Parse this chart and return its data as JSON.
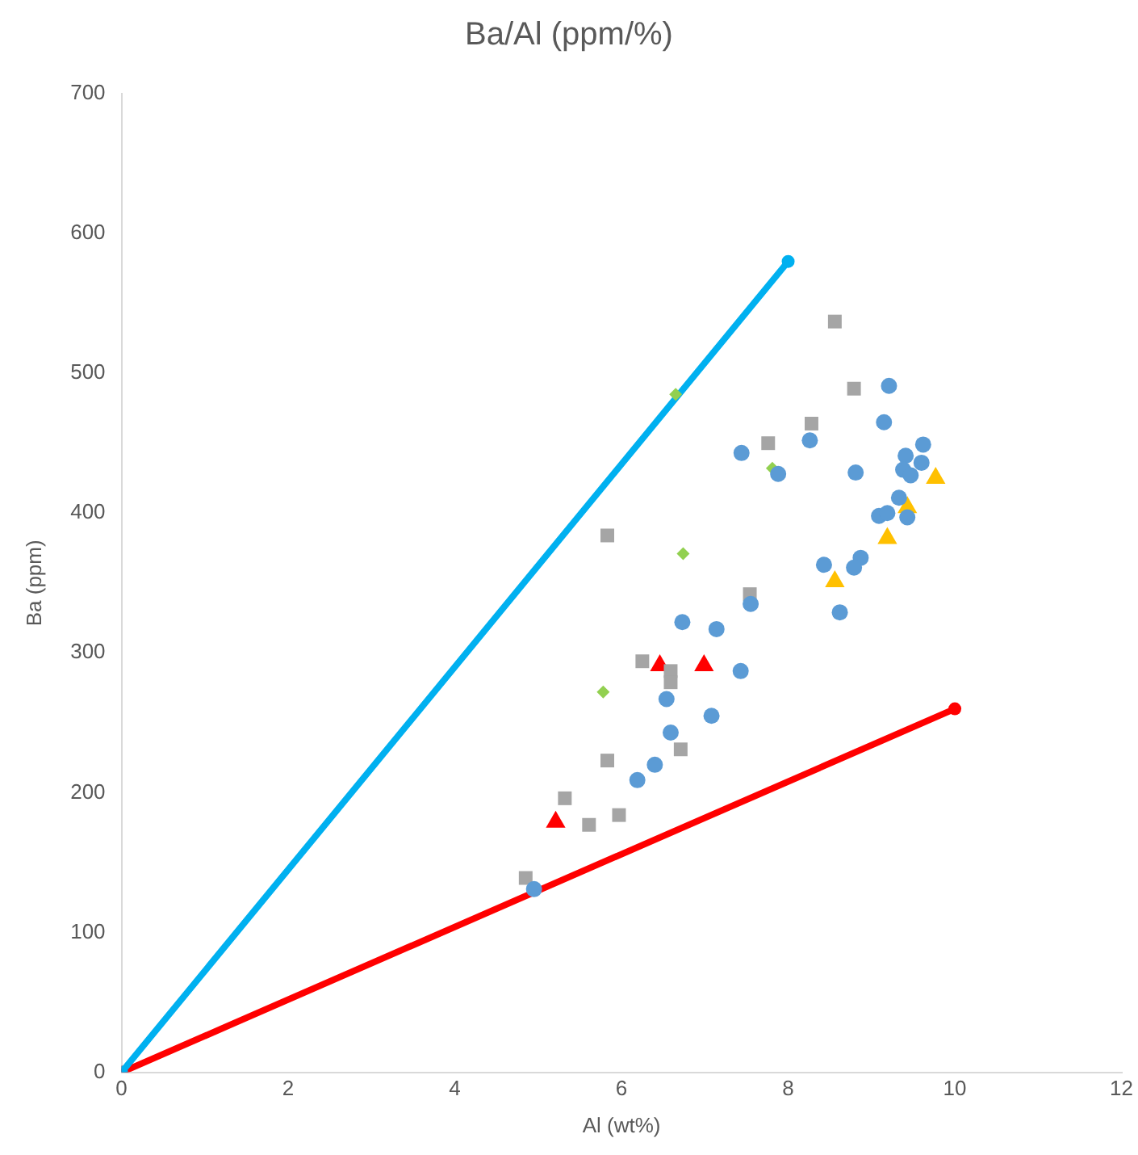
{
  "chart_data": {
    "type": "scatter",
    "title": "Ba/Al (ppm/%)",
    "xlabel": "Al (wt%)",
    "ylabel": "Ba (ppm)",
    "xlim": [
      0,
      12
    ],
    "xticks": [
      0,
      2,
      4,
      6,
      8,
      10,
      12
    ],
    "ylim": [
      0,
      700
    ],
    "yticks": [
      0,
      100,
      200,
      300,
      400,
      500,
      600,
      700
    ],
    "grid": false,
    "legend": false,
    "series": [
      {
        "type": "line",
        "color": "#00b0f0",
        "marker": "circle",
        "x": [
          0,
          8
        ],
        "values": [
          0,
          580
        ]
      },
      {
        "type": "line",
        "color": "#ff0000",
        "marker": "circle",
        "x": [
          0,
          10
        ],
        "values": [
          0,
          260
        ]
      },
      {
        "type": "scatter",
        "color": "#5b9bd5",
        "marker": "circle",
        "x": [
          9.21,
          9.15,
          8.26,
          7.44,
          7.88,
          8.81,
          9.62,
          9.41,
          9.38,
          9.6,
          9.47,
          9.33,
          9.09,
          9.19,
          9.43,
          8.43,
          8.87,
          8.79,
          8.62,
          7.55,
          6.73,
          7.14,
          7.43,
          6.54,
          7.08,
          6.59,
          6.4,
          6.19,
          4.95
        ],
        "values": [
          491,
          465,
          452,
          443,
          428,
          429,
          449,
          441,
          431,
          436,
          427,
          411,
          398,
          400,
          397,
          363,
          368,
          361,
          329,
          335,
          322,
          317,
          287,
          267,
          255,
          243,
          220,
          209,
          131
        ]
      },
      {
        "type": "scatter",
        "color": "#a5a5a5",
        "marker": "square",
        "x": [
          8.56,
          8.79,
          8.28,
          7.76,
          5.83,
          7.54,
          6.25,
          6.59,
          6.59,
          6.71,
          5.83,
          5.32,
          5.61,
          5.97,
          4.85
        ],
        "values": [
          537,
          489,
          464,
          450,
          384,
          342,
          294,
          287,
          279,
          231,
          223,
          196,
          177,
          184,
          139
        ]
      },
      {
        "type": "scatter",
        "color": "#92d050",
        "marker": "diamond",
        "x": [
          6.65,
          7.81,
          6.74,
          5.78
        ],
        "values": [
          485,
          432,
          371,
          272
        ]
      },
      {
        "type": "scatter",
        "color": "#ffc000",
        "marker": "triangle",
        "x": [
          9.77,
          9.43,
          9.19,
          8.56
        ],
        "values": [
          425,
          404,
          382,
          351
        ]
      },
      {
        "type": "scatter",
        "color": "#ff0000",
        "marker": "triangle",
        "x": [
          6.46,
          6.99,
          5.21
        ],
        "values": [
          291,
          291,
          179
        ]
      }
    ]
  }
}
